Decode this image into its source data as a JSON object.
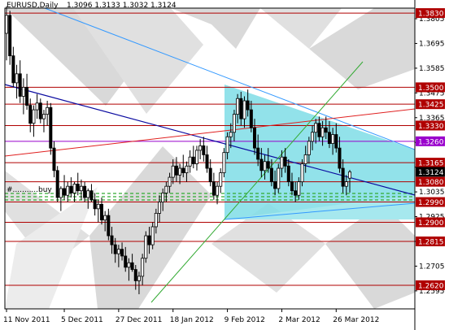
{
  "header": {
    "symbol": "EURUSD,Daily",
    "ohlc": "1.3096 1.3133 1.3032 1.3124"
  },
  "annotation": "#...........buy",
  "colors": {
    "background": "#ffffff",
    "zone_gray": "#d9d9d9",
    "zone_cyan": "#7fdde6",
    "level_line": "#b00000",
    "level_label_bg": "#b00000",
    "purple_line": "#9900cc",
    "trend_blue": "#0a0aa0",
    "channel_blue": "#3399ff",
    "red_trend": "#e02020",
    "green_line": "#33aa33",
    "dotted_green": "#33aa33",
    "current_bg": "#000000",
    "candle": "#000000"
  },
  "chart_data": {
    "type": "candlestick",
    "title": "EURUSD,Daily",
    "ylim": [
      1.2515,
      1.3852
    ],
    "y_ticks": [
      "1.3805",
      "1.3695",
      "1.3585",
      "1.3475",
      "1.3365",
      "1.3255",
      "1.3145",
      "1.3035",
      "1.2925",
      "1.2815",
      "1.2705",
      "1.2595"
    ],
    "x_ticks": [
      {
        "label": "11 Nov 2011",
        "i": 0
      },
      {
        "label": "5 Dec 2011",
        "i": 17
      },
      {
        "label": "27 Dec 2011",
        "i": 33
      },
      {
        "label": "18 Jan 2012",
        "i": 49
      },
      {
        "label": "9 Feb 2012",
        "i": 65
      },
      {
        "label": "2 Mar 2012",
        "i": 81
      },
      {
        "label": "26 Mar 2012",
        "i": 97
      }
    ],
    "levels": [
      {
        "price": 1.383,
        "label": "1.3830",
        "color": "#b00000"
      },
      {
        "price": 1.35,
        "label": "1.3500",
        "color": "#b00000"
      },
      {
        "price": 1.3425,
        "label": "1.3425",
        "color": "#b00000"
      },
      {
        "price": 1.333,
        "label": "1.3330",
        "color": "#b00000"
      },
      {
        "price": 1.326,
        "label": "1.3260",
        "color": "#9900cc"
      },
      {
        "price": 1.3165,
        "label": "1.3165",
        "color": "#b00000"
      },
      {
        "price": 1.308,
        "label": "1.3080",
        "color": "#b00000"
      },
      {
        "price": 1.299,
        "label": "1.2990",
        "color": "#b00000"
      },
      {
        "price": 1.29,
        "label": "1.2900",
        "color": "#b00000"
      },
      {
        "price": 1.2815,
        "label": "1.2815",
        "color": "#b00000"
      },
      {
        "price": 1.262,
        "label": "1.2620",
        "color": "#b00000"
      }
    ],
    "current_price": {
      "price": 1.3124,
      "label": "1.3124"
    },
    "candles": [
      [
        1.374,
        1.386,
        1.362,
        1.382
      ],
      [
        1.382,
        1.384,
        1.36,
        1.364
      ],
      [
        1.364,
        1.368,
        1.35,
        1.352
      ],
      [
        1.352,
        1.36,
        1.345,
        1.356
      ],
      [
        1.356,
        1.362,
        1.343,
        1.346
      ],
      [
        1.346,
        1.354,
        1.338,
        1.35
      ],
      [
        1.35,
        1.356,
        1.34,
        1.342
      ],
      [
        1.342,
        1.345,
        1.33,
        1.334
      ],
      [
        1.334,
        1.342,
        1.328,
        1.34
      ],
      [
        1.34,
        1.347,
        1.336,
        1.343
      ],
      [
        1.343,
        1.345,
        1.334,
        1.336
      ],
      [
        1.336,
        1.34,
        1.33,
        1.338
      ],
      [
        1.338,
        1.344,
        1.333,
        1.341
      ],
      [
        1.341,
        1.343,
        1.32,
        1.323
      ],
      [
        1.323,
        1.326,
        1.31,
        1.313
      ],
      [
        1.313,
        1.315,
        1.299,
        1.301
      ],
      [
        1.301,
        1.306,
        1.295,
        1.305
      ],
      [
        1.305,
        1.311,
        1.3,
        1.302
      ],
      [
        1.302,
        1.308,
        1.299,
        1.306
      ],
      [
        1.306,
        1.31,
        1.301,
        1.303
      ],
      [
        1.303,
        1.308,
        1.299,
        1.307
      ],
      [
        1.307,
        1.312,
        1.302,
        1.304
      ],
      [
        1.304,
        1.309,
        1.3,
        1.306
      ],
      [
        1.306,
        1.308,
        1.299,
        1.301
      ],
      [
        1.301,
        1.305,
        1.296,
        1.304
      ],
      [
        1.304,
        1.307,
        1.299,
        1.3
      ],
      [
        1.3,
        1.303,
        1.293,
        1.296
      ],
      [
        1.296,
        1.3,
        1.29,
        1.298
      ],
      [
        1.298,
        1.301,
        1.289,
        1.291
      ],
      [
        1.291,
        1.295,
        1.286,
        1.293
      ],
      [
        1.293,
        1.296,
        1.282,
        1.284
      ],
      [
        1.284,
        1.288,
        1.276,
        1.28
      ],
      [
        1.28,
        1.283,
        1.272,
        1.276
      ],
      [
        1.276,
        1.28,
        1.27,
        1.278
      ],
      [
        1.278,
        1.281,
        1.273,
        1.275
      ],
      [
        1.275,
        1.279,
        1.268,
        1.27
      ],
      [
        1.27,
        1.274,
        1.264,
        1.272
      ],
      [
        1.272,
        1.276,
        1.268,
        1.269
      ],
      [
        1.269,
        1.271,
        1.26,
        1.264
      ],
      [
        1.264,
        1.268,
        1.258,
        1.266
      ],
      [
        1.266,
        1.276,
        1.262,
        1.274
      ],
      [
        1.274,
        1.286,
        1.272,
        1.284
      ],
      [
        1.284,
        1.288,
        1.276,
        1.28
      ],
      [
        1.28,
        1.29,
        1.278,
        1.288
      ],
      [
        1.288,
        1.296,
        1.285,
        1.294
      ],
      [
        1.294,
        1.302,
        1.29,
        1.299
      ],
      [
        1.299,
        1.305,
        1.295,
        1.303
      ],
      [
        1.303,
        1.308,
        1.299,
        1.306
      ],
      [
        1.306,
        1.312,
        1.303,
        1.31
      ],
      [
        1.31,
        1.318,
        1.307,
        1.315
      ],
      [
        1.315,
        1.319,
        1.308,
        1.311
      ],
      [
        1.311,
        1.316,
        1.307,
        1.314
      ],
      [
        1.314,
        1.32,
        1.31,
        1.312
      ],
      [
        1.312,
        1.317,
        1.308,
        1.315
      ],
      [
        1.315,
        1.322,
        1.312,
        1.319
      ],
      [
        1.319,
        1.324,
        1.314,
        1.316
      ],
      [
        1.316,
        1.324,
        1.313,
        1.322
      ],
      [
        1.322,
        1.327,
        1.318,
        1.324
      ],
      [
        1.324,
        1.328,
        1.317,
        1.32
      ],
      [
        1.32,
        1.324,
        1.312,
        1.314
      ],
      [
        1.314,
        1.318,
        1.306,
        1.308
      ],
      [
        1.308,
        1.312,
        1.3,
        1.302
      ],
      [
        1.302,
        1.308,
        1.298,
        1.306
      ],
      [
        1.306,
        1.314,
        1.303,
        1.312
      ],
      [
        1.312,
        1.323,
        1.31,
        1.321
      ],
      [
        1.321,
        1.33,
        1.318,
        1.328
      ],
      [
        1.328,
        1.334,
        1.323,
        1.33
      ],
      [
        1.33,
        1.34,
        1.326,
        1.338
      ],
      [
        1.338,
        1.347,
        1.334,
        1.345
      ],
      [
        1.345,
        1.348,
        1.333,
        1.336
      ],
      [
        1.336,
        1.346,
        1.332,
        1.344
      ],
      [
        1.344,
        1.349,
        1.337,
        1.34
      ],
      [
        1.34,
        1.344,
        1.33,
        1.332
      ],
      [
        1.332,
        1.336,
        1.32,
        1.323
      ],
      [
        1.323,
        1.329,
        1.315,
        1.318
      ],
      [
        1.318,
        1.323,
        1.31,
        1.313
      ],
      [
        1.313,
        1.32,
        1.309,
        1.317
      ],
      [
        1.317,
        1.323,
        1.312,
        1.314
      ],
      [
        1.314,
        1.318,
        1.306,
        1.308
      ],
      [
        1.308,
        1.313,
        1.302,
        1.305
      ],
      [
        1.305,
        1.316,
        1.303,
        1.314
      ],
      [
        1.314,
        1.322,
        1.31,
        1.319
      ],
      [
        1.319,
        1.323,
        1.312,
        1.315
      ],
      [
        1.315,
        1.318,
        1.306,
        1.308
      ],
      [
        1.308,
        1.312,
        1.302,
        1.304
      ],
      [
        1.304,
        1.308,
        1.299,
        1.302
      ],
      [
        1.302,
        1.31,
        1.3,
        1.308
      ],
      [
        1.308,
        1.318,
        1.306,
        1.316
      ],
      [
        1.316,
        1.324,
        1.312,
        1.32
      ],
      [
        1.32,
        1.328,
        1.316,
        1.326
      ],
      [
        1.326,
        1.333,
        1.322,
        1.33
      ],
      [
        1.33,
        1.336,
        1.325,
        1.334
      ],
      [
        1.334,
        1.337,
        1.326,
        1.328
      ],
      [
        1.328,
        1.335,
        1.324,
        1.332
      ],
      [
        1.332,
        1.337,
        1.327,
        1.33
      ],
      [
        1.33,
        1.335,
        1.323,
        1.325
      ],
      [
        1.325,
        1.332,
        1.32,
        1.329
      ],
      [
        1.329,
        1.334,
        1.321,
        1.323
      ],
      [
        1.323,
        1.328,
        1.312,
        1.314
      ],
      [
        1.314,
        1.318,
        1.303,
        1.306
      ],
      [
        1.306,
        1.311,
        1.302,
        1.308
      ],
      [
        1.3096,
        1.3133,
        1.3032,
        1.3124
      ]
    ]
  }
}
